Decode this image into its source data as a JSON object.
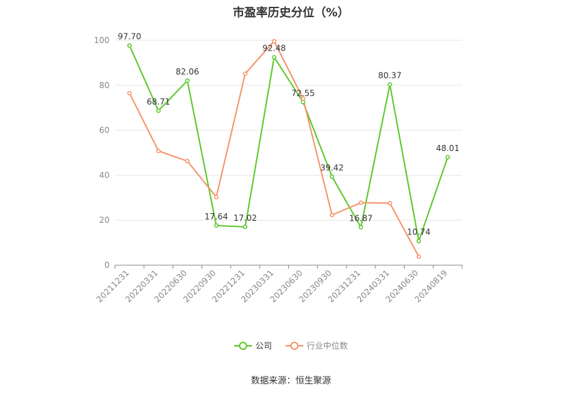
{
  "chart_data": {
    "type": "line",
    "title": "市盈率历史分位（%）",
    "categories": [
      "20211231",
      "20220331",
      "20220630",
      "20220930",
      "20221231",
      "20230331",
      "20230630",
      "20230930",
      "20231231",
      "20240331",
      "20240630",
      "20240819"
    ],
    "ylim": [
      0,
      100
    ],
    "yticks": [
      0,
      20,
      40,
      60,
      80,
      100
    ],
    "grid": true,
    "legend_position": "bottom",
    "series": [
      {
        "name": "公司",
        "color": "#5cc82a",
        "values": [
          97.7,
          68.71,
          82.06,
          17.64,
          17.02,
          92.48,
          72.55,
          39.42,
          16.87,
          80.37,
          10.74,
          48.01
        ],
        "labels": [
          "97.70",
          "68.71",
          "82.06",
          "17.64",
          "17.02",
          "92.48",
          "72.55",
          "39.42",
          "16.87",
          "80.37",
          "10.74",
          "48.01"
        ]
      },
      {
        "name": "行业中位数",
        "color": "#f4946a",
        "values": [
          76.5,
          50.8,
          46.3,
          30.3,
          85.2,
          99.6,
          74.1,
          22.3,
          27.8,
          27.6,
          3.8,
          null
        ]
      }
    ],
    "source": "数据来源：恒生聚源"
  }
}
